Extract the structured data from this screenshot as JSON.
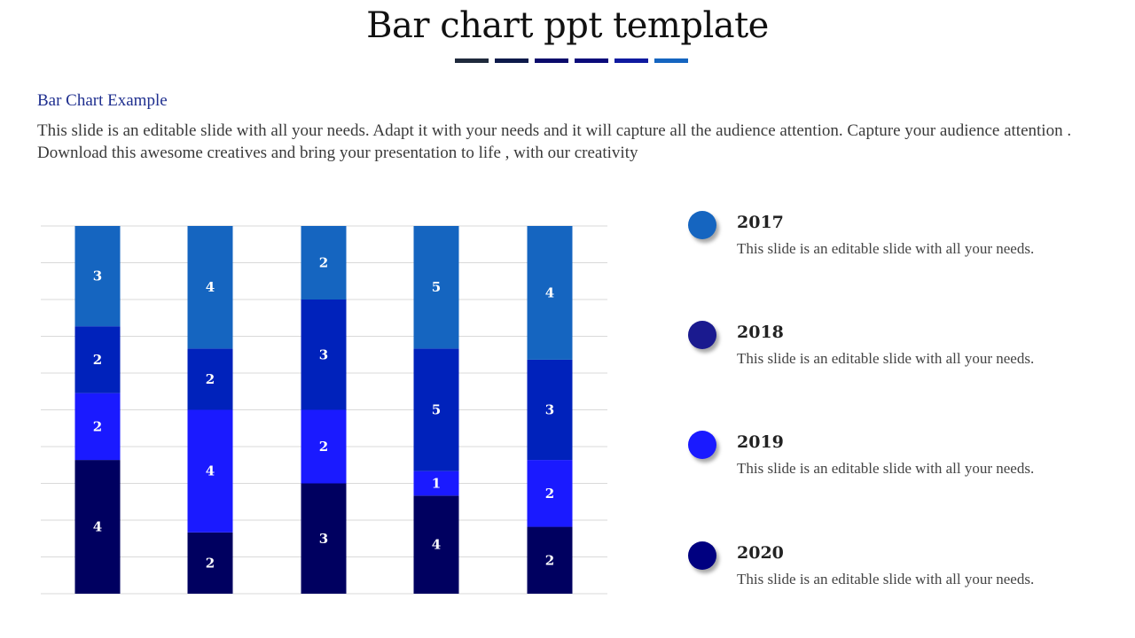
{
  "page": {
    "title": "Bar chart ppt template",
    "subtitle": "Bar Chart Example",
    "description": "This slide is an editable slide with all your needs. Adapt it with your needs and it will capture all the audience attention. Capture your audience attention . Download this awesome creatives and bring your presentation to life , with our creativity",
    "title_bar_colors": [
      "#1f2a3c",
      "#0d1a4a",
      "#0a0a6b",
      "#0a0a7a",
      "#0f1aa0",
      "#1565c0"
    ]
  },
  "chart_data": {
    "type": "bar",
    "stacked": true,
    "categories": [
      "",
      "",
      "",
      "",
      ""
    ],
    "series": [
      {
        "name": "2020",
        "color": "#000060",
        "values": [
          4,
          2,
          3,
          4,
          2
        ]
      },
      {
        "name": "2019",
        "color": "#1a1aff",
        "values": [
          2,
          4,
          2,
          1,
          2
        ]
      },
      {
        "name": "2018",
        "color": "#0022bb",
        "values": [
          2,
          2,
          3,
          5,
          3
        ]
      },
      {
        "name": "2017",
        "color": "#1565c0",
        "values": [
          3,
          4,
          2,
          5,
          4
        ]
      }
    ],
    "grid": true,
    "legend": "right"
  },
  "legend": [
    {
      "year": "2017",
      "text": "This slide is an editable slide with all your needs.",
      "color": "#1565c0"
    },
    {
      "year": "2018",
      "text": "This slide is an editable slide with all your needs.",
      "color": "#1a1a8f"
    },
    {
      "year": "2019",
      "text": "This slide is an editable slide with all your needs.",
      "color": "#1a1aff"
    },
    {
      "year": "2020",
      "text": "This slide is an editable slide with all your needs.",
      "color": "#000080"
    }
  ]
}
